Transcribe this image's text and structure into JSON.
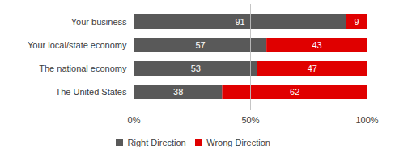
{
  "chart_data": {
    "type": "bar",
    "orientation": "horizontal",
    "stacked": true,
    "data_labels": true,
    "grid": true,
    "legend": "bottom",
    "categories": [
      "Your business",
      "Your local/state economy",
      "The national economy",
      "The United States"
    ],
    "series": [
      {
        "name": "Right Direction",
        "color": "#595959",
        "values": [
          91,
          57,
          53,
          38
        ]
      },
      {
        "name": "Wrong Direction",
        "color": "#e00000",
        "values": [
          9,
          43,
          47,
          62
        ]
      }
    ],
    "xlim": [
      0,
      100
    ],
    "xticks": [
      {
        "value": 0,
        "label": "0%"
      },
      {
        "value": 50,
        "label": "50%"
      },
      {
        "value": 100,
        "label": "100%"
      }
    ]
  }
}
